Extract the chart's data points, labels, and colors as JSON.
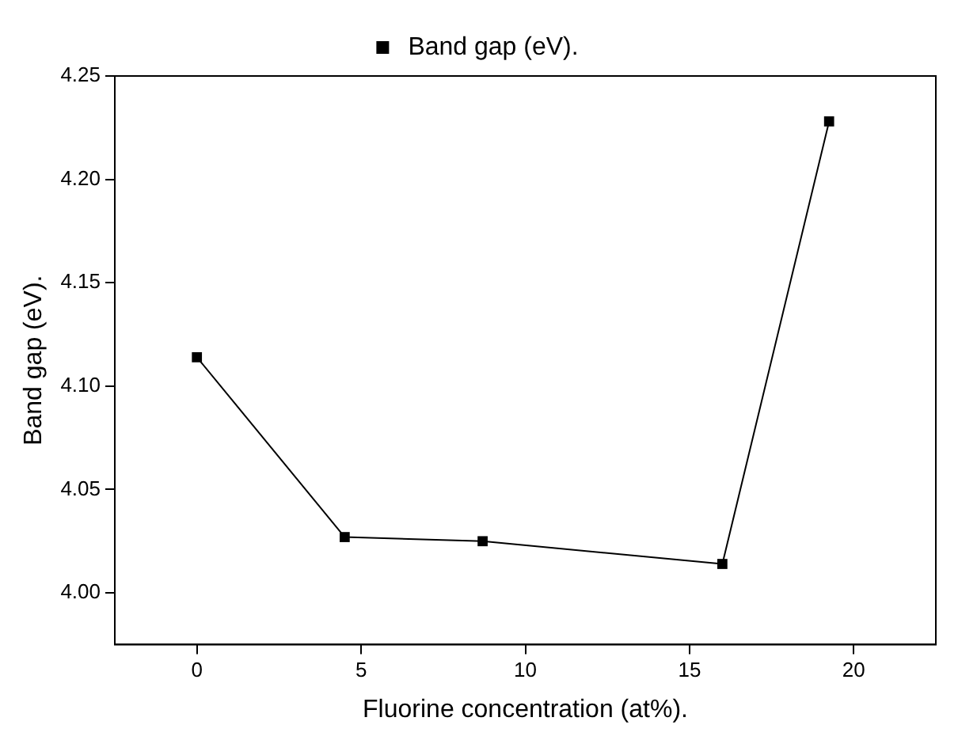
{
  "chart_data": {
    "type": "line",
    "xlabel": "Fluorine concentration (at%).",
    "ylabel": "Band gap (eV).",
    "x": [
      0,
      4.5,
      8.7,
      16.0,
      19.25
    ],
    "series": [
      {
        "name": "Band gap (eV).",
        "color": "#000000",
        "values": [
          4.114,
          4.027,
          4.025,
          4.014,
          4.228
        ]
      }
    ],
    "xlim": [
      -2.5,
      22.5
    ],
    "xticks": [
      0,
      5,
      10,
      15,
      20
    ],
    "ylim": [
      3.975,
      4.25
    ],
    "yticks": [
      {
        "value": 4,
        "label": "4.00"
      },
      4.05,
      {
        "value": 4.1,
        "label": "4.10"
      },
      4.15,
      {
        "value": 4.2,
        "label": "4.20"
      },
      4.25
    ],
    "marker": "square",
    "line_style": "solid",
    "grid": false,
    "legend": "top"
  }
}
